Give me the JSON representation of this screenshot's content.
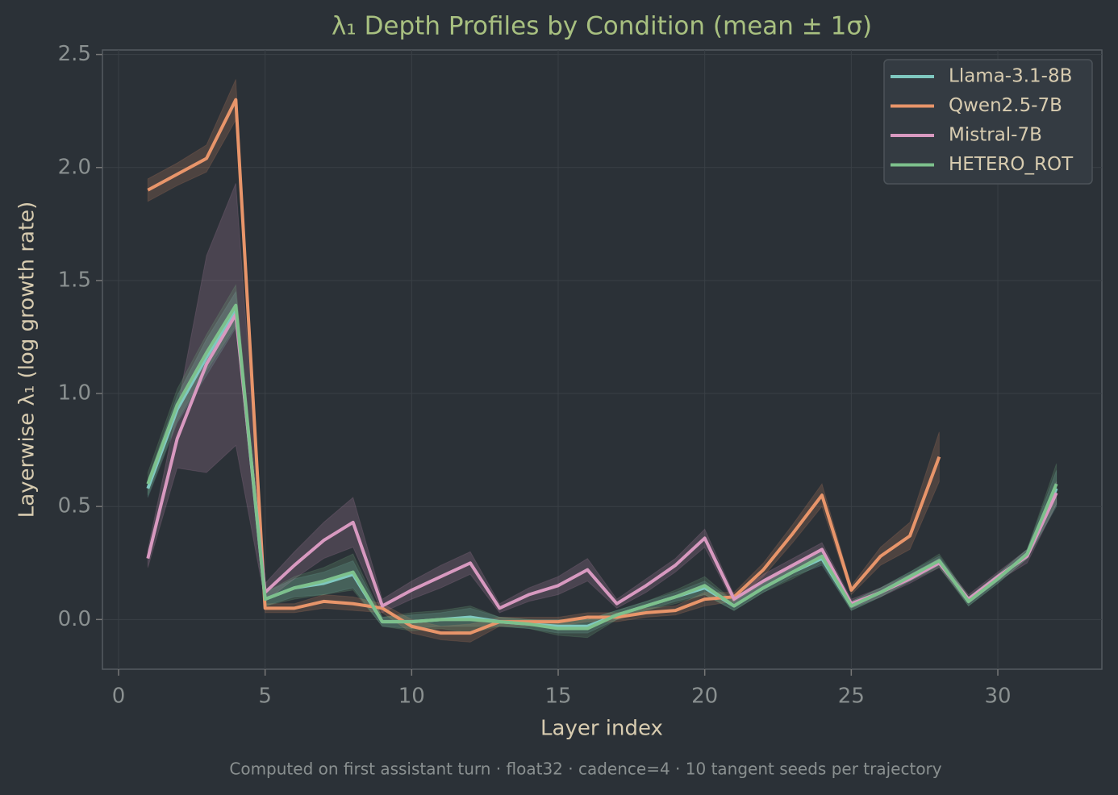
{
  "chart_data": {
    "type": "line",
    "title": "λ₁ Depth Profiles by Condition (mean ± 1σ)",
    "xlabel": "Layer index",
    "ylabel": "Layerwise λ₁ (log growth rate)",
    "footnote": "Computed on first assistant turn · float32 · cadence=4 · 10 tangent seeds per trajectory",
    "x": [
      1,
      2,
      3,
      4,
      5,
      6,
      7,
      8,
      9,
      10,
      11,
      12,
      13,
      14,
      15,
      16,
      17,
      18,
      19,
      20,
      21,
      22,
      23,
      24,
      25,
      26,
      27,
      28,
      29,
      30,
      31,
      32
    ],
    "xlim": [
      -0.55,
      33.55
    ],
    "xticks": [
      0,
      5,
      10,
      15,
      20,
      25,
      30
    ],
    "ylim": [
      -0.22,
      2.52
    ],
    "yticks": [
      {
        "value": 0,
        "label": "0.0"
      },
      0.5,
      {
        "value": 1,
        "label": "1.0"
      },
      1.5,
      {
        "value": 2,
        "label": "2.0"
      },
      2.5
    ],
    "grid": true,
    "legend": "upper right",
    "series": [
      {
        "name": "Llama-3.1-8B",
        "color": "#7fc8c0",
        "values": [
          0.58,
          0.93,
          1.16,
          1.37,
          0.09,
          0.14,
          0.16,
          0.2,
          -0.01,
          -0.01,
          0.0,
          0.01,
          -0.01,
          -0.02,
          -0.03,
          -0.03,
          0.02,
          0.06,
          0.1,
          0.14,
          0.06,
          0.14,
          0.21,
          0.27,
          0.06,
          0.12,
          0.19,
          0.26,
          0.08,
          0.18,
          0.29,
          0.58
        ],
        "errors": [
          0.04,
          0.06,
          0.08,
          0.08,
          0.03,
          0.04,
          0.05,
          0.06,
          0.02,
          0.03,
          0.03,
          0.04,
          0.02,
          0.02,
          0.03,
          0.03,
          0.02,
          0.02,
          0.02,
          0.03,
          0.02,
          0.02,
          0.02,
          0.03,
          0.02,
          0.02,
          0.02,
          0.02,
          0.02,
          0.02,
          0.02,
          0.08
        ]
      },
      {
        "name": "Qwen2.5-7B",
        "color": "#e8956a",
        "values": [
          1.9,
          1.97,
          2.04,
          2.3,
          0.05,
          0.05,
          0.08,
          0.07,
          0.05,
          -0.03,
          -0.06,
          -0.06,
          -0.01,
          -0.01,
          -0.01,
          0.01,
          0.01,
          0.03,
          0.04,
          0.09,
          0.1,
          0.22,
          0.38,
          0.55,
          0.13,
          0.28,
          0.37,
          0.72,
          null,
          null,
          null,
          null
        ],
        "errors": [
          0.05,
          0.05,
          0.06,
          0.09,
          0.02,
          0.02,
          0.03,
          0.03,
          0.02,
          0.03,
          0.03,
          0.04,
          0.02,
          0.02,
          0.02,
          0.02,
          0.02,
          0.02,
          0.02,
          0.03,
          0.02,
          0.03,
          0.04,
          0.05,
          0.02,
          0.04,
          0.06,
          0.11,
          null,
          null,
          null,
          null
        ]
      },
      {
        "name": "Mistral-7B",
        "color": "#d899c0",
        "values": [
          0.27,
          0.8,
          1.13,
          1.35,
          0.12,
          0.24,
          0.35,
          0.43,
          0.06,
          0.13,
          0.19,
          0.25,
          0.05,
          0.11,
          0.15,
          0.22,
          0.07,
          0.15,
          0.24,
          0.36,
          0.09,
          0.17,
          0.24,
          0.31,
          0.07,
          0.12,
          0.18,
          0.25,
          0.09,
          0.19,
          0.28,
          0.56
        ],
        "errors": [
          0.04,
          0.13,
          0.48,
          0.58,
          0.04,
          0.06,
          0.08,
          0.11,
          0.03,
          0.04,
          0.05,
          0.05,
          0.02,
          0.03,
          0.04,
          0.05,
          0.02,
          0.03,
          0.03,
          0.04,
          0.02,
          0.03,
          0.03,
          0.03,
          0.02,
          0.02,
          0.02,
          0.02,
          0.02,
          0.02,
          0.03,
          0.05
        ]
      },
      {
        "name": "HETERO_ROT",
        "color": "#7dc08c",
        "values": [
          0.6,
          0.95,
          1.18,
          1.39,
          0.09,
          0.14,
          0.17,
          0.21,
          -0.01,
          -0.01,
          0.0,
          0.0,
          -0.01,
          -0.02,
          -0.04,
          -0.04,
          0.02,
          0.06,
          0.1,
          0.15,
          0.06,
          0.14,
          0.21,
          0.28,
          0.06,
          0.12,
          0.19,
          0.26,
          0.08,
          0.18,
          0.29,
          0.6
        ],
        "errors": [
          0.05,
          0.07,
          0.08,
          0.09,
          0.03,
          0.05,
          0.06,
          0.08,
          0.02,
          0.04,
          0.04,
          0.06,
          0.02,
          0.02,
          0.03,
          0.04,
          0.02,
          0.02,
          0.03,
          0.04,
          0.02,
          0.02,
          0.03,
          0.03,
          0.02,
          0.02,
          0.02,
          0.03,
          0.02,
          0.02,
          0.02,
          0.09
        ]
      }
    ]
  }
}
